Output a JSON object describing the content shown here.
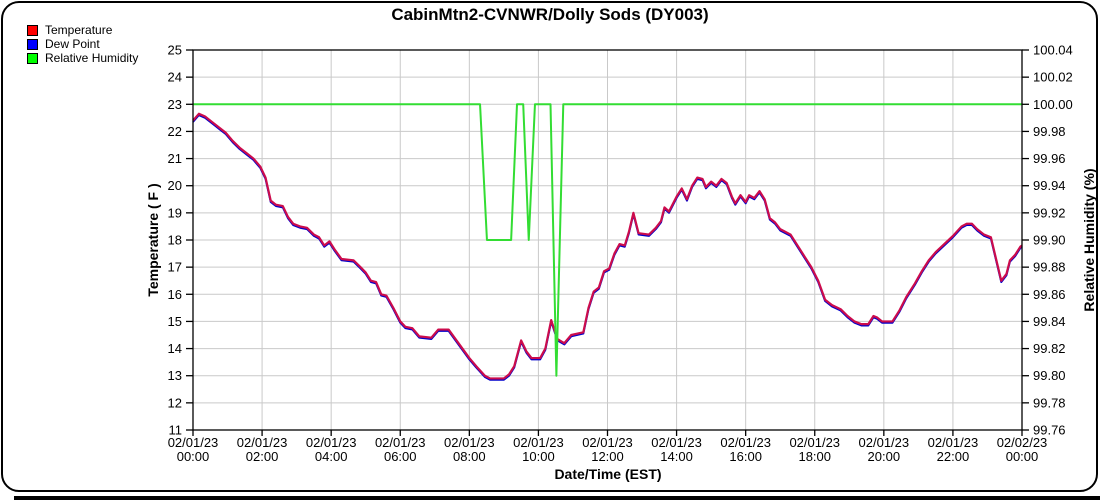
{
  "title": "CabinMtn2-CVNWR/Dolly Sods (DY003)",
  "legend": {
    "items": [
      {
        "label": "Temperature",
        "color": "#ff0000"
      },
      {
        "label": "Dew Point",
        "color": "#0000ff"
      },
      {
        "label": "Relative Humidity",
        "color": "#00ff00"
      }
    ]
  },
  "colors": {
    "background": "#ffffff",
    "grid": "#c9c9c9",
    "axis": "#000000",
    "temperature_line": "#cc0c4c",
    "dew_point_line": "#0000cc",
    "humidity_line": "#33dd33"
  },
  "chart_data": {
    "type": "line",
    "title": "CabinMtn2-CVNWR/Dolly Sods (DY003)",
    "grid": true,
    "legend_position": "top-left",
    "x_axis": {
      "title": "Date/Time (EST)",
      "unit": "hours",
      "range": [
        0,
        24
      ],
      "gridline_step_hours": 2,
      "ticks": [
        {
          "date": "02/01/23",
          "time": "00:00"
        },
        {
          "date": "02/01/23",
          "time": "02:00"
        },
        {
          "date": "02/01/23",
          "time": "04:00"
        },
        {
          "date": "02/01/23",
          "time": "06:00"
        },
        {
          "date": "02/01/23",
          "time": "08:00"
        },
        {
          "date": "02/01/23",
          "time": "10:00"
        },
        {
          "date": "02/01/23",
          "time": "12:00"
        },
        {
          "date": "02/01/23",
          "time": "14:00"
        },
        {
          "date": "02/01/23",
          "time": "16:00"
        },
        {
          "date": "02/01/23",
          "time": "18:00"
        },
        {
          "date": "02/01/23",
          "time": "20:00"
        },
        {
          "date": "02/01/23",
          "time": "22:00"
        },
        {
          "date": "02/02/23",
          "time": "00:00"
        }
      ]
    },
    "y_left": {
      "title": "Temperature ( F )",
      "range": [
        11,
        25
      ],
      "tick_labels": [
        "25",
        "24",
        "23",
        "22",
        "21",
        "20",
        "19",
        "18",
        "17",
        "16",
        "15",
        "14",
        "13",
        "12",
        "11"
      ]
    },
    "y_right": {
      "title": "Relative Humidity (%)",
      "range": [
        99.76,
        100.04
      ],
      "tick_labels": [
        "100.04",
        "100.02",
        "100.00",
        "99.98",
        "99.96",
        "99.94",
        "99.92",
        "99.90",
        "99.88",
        "99.86",
        "99.84",
        "99.82",
        "99.80",
        "99.78",
        "99.76"
      ]
    },
    "series": [
      {
        "name": "Temperature",
        "axis": "left",
        "unit": "F",
        "points": [
          [
            0,
            22.4
          ],
          [
            0.17,
            22.65
          ],
          [
            0.35,
            22.55
          ],
          [
            0.55,
            22.35
          ],
          [
            0.75,
            22.15
          ],
          [
            0.95,
            21.95
          ],
          [
            1.15,
            21.65
          ],
          [
            1.35,
            21.4
          ],
          [
            1.55,
            21.2
          ],
          [
            1.75,
            21.0
          ],
          [
            1.95,
            20.7
          ],
          [
            2.1,
            20.3
          ],
          [
            2.25,
            19.45
          ],
          [
            2.4,
            19.3
          ],
          [
            2.6,
            19.25
          ],
          [
            2.75,
            18.85
          ],
          [
            2.9,
            18.6
          ],
          [
            3.1,
            18.5
          ],
          [
            3.3,
            18.45
          ],
          [
            3.5,
            18.2
          ],
          [
            3.65,
            18.1
          ],
          [
            3.8,
            17.8
          ],
          [
            3.95,
            17.95
          ],
          [
            4.1,
            17.65
          ],
          [
            4.3,
            17.3
          ],
          [
            4.65,
            17.25
          ],
          [
            4.85,
            17.0
          ],
          [
            5.0,
            16.8
          ],
          [
            5.15,
            16.5
          ],
          [
            5.3,
            16.45
          ],
          [
            5.45,
            16.0
          ],
          [
            5.6,
            15.95
          ],
          [
            5.8,
            15.5
          ],
          [
            6.0,
            15.0
          ],
          [
            6.15,
            14.8
          ],
          [
            6.35,
            14.75
          ],
          [
            6.55,
            14.45
          ],
          [
            6.9,
            14.4
          ],
          [
            7.1,
            14.7
          ],
          [
            7.4,
            14.7
          ],
          [
            7.6,
            14.35
          ],
          [
            7.8,
            14.0
          ],
          [
            8.0,
            13.65
          ],
          [
            8.2,
            13.35
          ],
          [
            8.45,
            13.0
          ],
          [
            8.6,
            12.9
          ],
          [
            9.0,
            12.9
          ],
          [
            9.15,
            13.05
          ],
          [
            9.3,
            13.35
          ],
          [
            9.5,
            14.3
          ],
          [
            9.65,
            13.9
          ],
          [
            9.8,
            13.65
          ],
          [
            10.05,
            13.65
          ],
          [
            10.2,
            14.0
          ],
          [
            10.37,
            15.05
          ],
          [
            10.55,
            14.35
          ],
          [
            10.75,
            14.2
          ],
          [
            10.95,
            14.5
          ],
          [
            11.3,
            14.6
          ],
          [
            11.45,
            15.5
          ],
          [
            11.6,
            16.1
          ],
          [
            11.75,
            16.25
          ],
          [
            11.9,
            16.85
          ],
          [
            12.05,
            16.95
          ],
          [
            12.2,
            17.5
          ],
          [
            12.35,
            17.85
          ],
          [
            12.5,
            17.8
          ],
          [
            12.62,
            18.3
          ],
          [
            12.75,
            19.0
          ],
          [
            12.9,
            18.25
          ],
          [
            13.2,
            18.2
          ],
          [
            13.4,
            18.45
          ],
          [
            13.55,
            18.7
          ],
          [
            13.65,
            19.2
          ],
          [
            13.78,
            19.05
          ],
          [
            14.0,
            19.6
          ],
          [
            14.15,
            19.9
          ],
          [
            14.3,
            19.5
          ],
          [
            14.45,
            20.0
          ],
          [
            14.6,
            20.3
          ],
          [
            14.75,
            20.25
          ],
          [
            14.85,
            19.95
          ],
          [
            15.0,
            20.15
          ],
          [
            15.15,
            20.0
          ],
          [
            15.3,
            20.25
          ],
          [
            15.45,
            20.1
          ],
          [
            15.6,
            19.6
          ],
          [
            15.7,
            19.35
          ],
          [
            15.85,
            19.65
          ],
          [
            16.0,
            19.4
          ],
          [
            16.1,
            19.65
          ],
          [
            16.25,
            19.55
          ],
          [
            16.4,
            19.8
          ],
          [
            16.55,
            19.5
          ],
          [
            16.7,
            18.8
          ],
          [
            16.85,
            18.65
          ],
          [
            17.0,
            18.4
          ],
          [
            17.3,
            18.2
          ],
          [
            17.5,
            17.8
          ],
          [
            17.7,
            17.4
          ],
          [
            17.9,
            17.0
          ],
          [
            18.1,
            16.5
          ],
          [
            18.3,
            15.8
          ],
          [
            18.5,
            15.6
          ],
          [
            18.75,
            15.45
          ],
          [
            18.95,
            15.2
          ],
          [
            19.15,
            15.0
          ],
          [
            19.35,
            14.9
          ],
          [
            19.55,
            14.9
          ],
          [
            19.7,
            15.2
          ],
          [
            19.8,
            15.15
          ],
          [
            19.95,
            15.0
          ],
          [
            20.25,
            15.0
          ],
          [
            20.45,
            15.4
          ],
          [
            20.65,
            15.9
          ],
          [
            20.9,
            16.4
          ],
          [
            21.1,
            16.85
          ],
          [
            21.3,
            17.25
          ],
          [
            21.5,
            17.55
          ],
          [
            21.75,
            17.85
          ],
          [
            22.0,
            18.15
          ],
          [
            22.25,
            18.5
          ],
          [
            22.4,
            18.6
          ],
          [
            22.55,
            18.6
          ],
          [
            22.7,
            18.4
          ],
          [
            22.9,
            18.2
          ],
          [
            23.1,
            18.1
          ],
          [
            23.25,
            17.3
          ],
          [
            23.4,
            16.5
          ],
          [
            23.55,
            16.75
          ],
          [
            23.65,
            17.25
          ],
          [
            23.8,
            17.45
          ],
          [
            23.95,
            17.75
          ],
          [
            24,
            17.8
          ]
        ]
      },
      {
        "name": "Dew Point",
        "axis": "left",
        "unit": "F",
        "note": "coincides with Temperature line; only a thin blue sliver visible beneath it",
        "points": "same_as_temperature"
      },
      {
        "name": "Relative Humidity",
        "axis": "right",
        "unit": "%",
        "points": [
          [
            0,
            100.0
          ],
          [
            8.31,
            100.0
          ],
          [
            8.51,
            99.9
          ],
          [
            9.21,
            99.9
          ],
          [
            9.38,
            100.0
          ],
          [
            9.56,
            100.0
          ],
          [
            9.72,
            99.9
          ],
          [
            9.9,
            100.0
          ],
          [
            10.35,
            100.0
          ],
          [
            10.52,
            99.8
          ],
          [
            10.72,
            100.0
          ],
          [
            24,
            100.0
          ]
        ]
      }
    ]
  }
}
